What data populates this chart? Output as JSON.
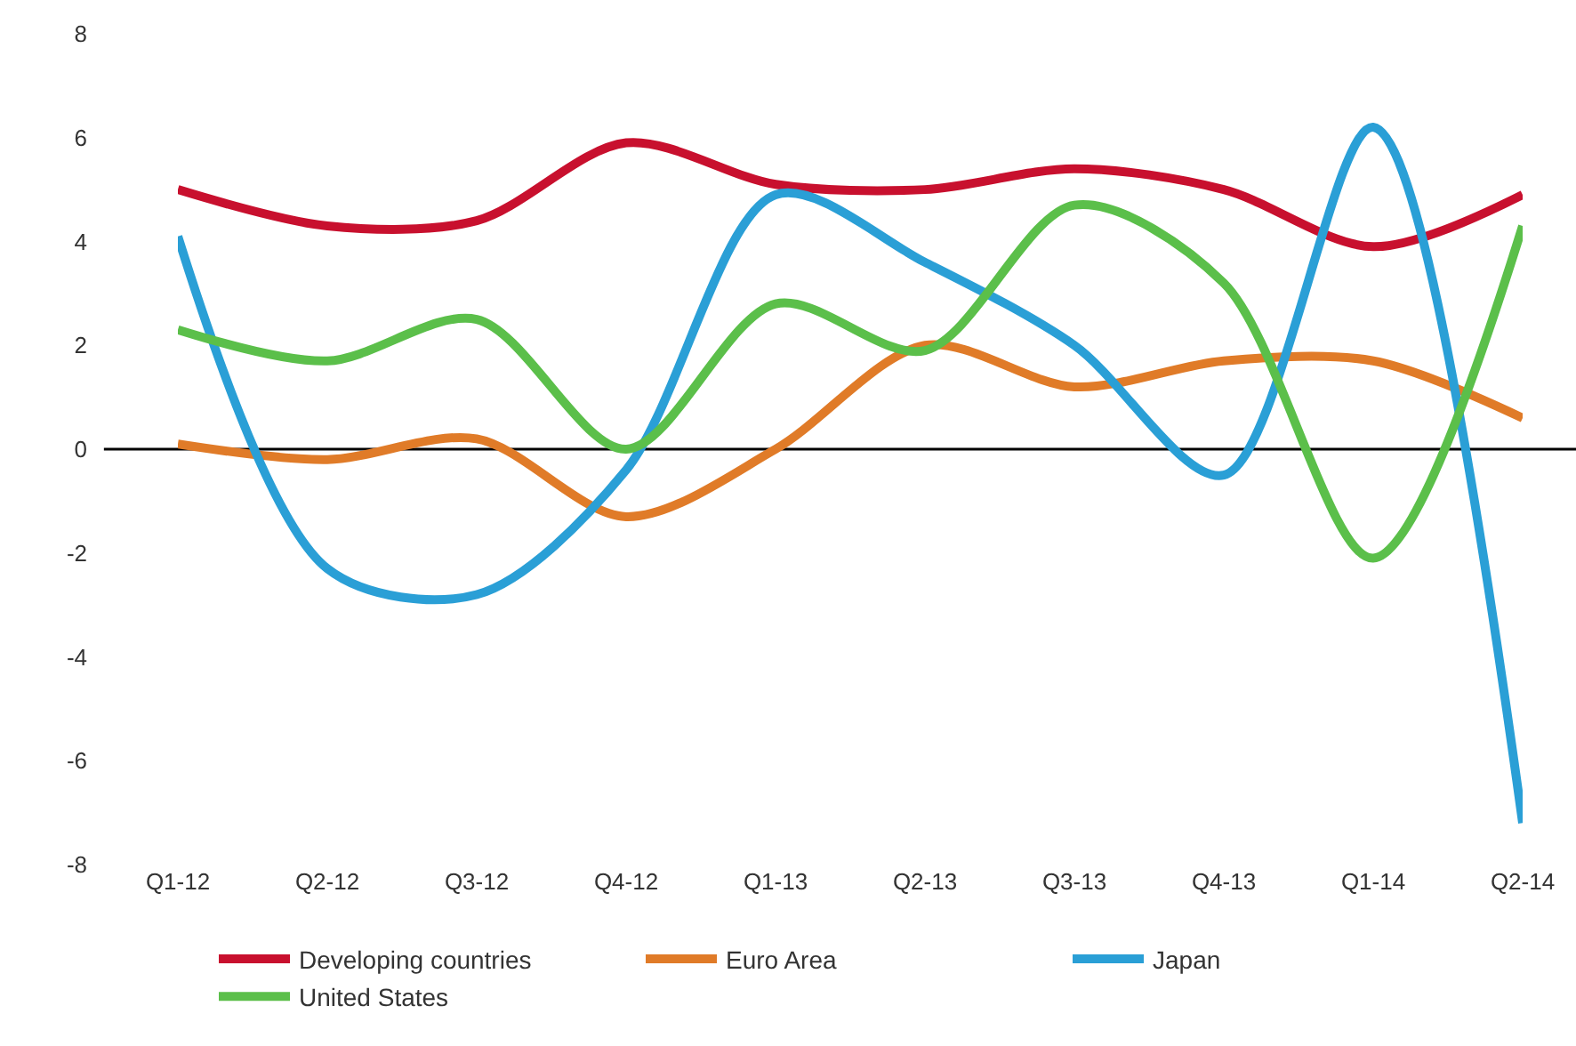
{
  "chart_data": {
    "type": "line",
    "categories": [
      "Q1-12",
      "Q2-12",
      "Q3-12",
      "Q4-12",
      "Q1-13",
      "Q2-13",
      "Q3-13",
      "Q4-13",
      "Q1-14",
      "Q2-14"
    ],
    "series": [
      {
        "name": "Developing countries",
        "color": "#c8102e",
        "values": [
          5.0,
          4.3,
          4.4,
          5.9,
          5.1,
          5.0,
          5.4,
          5.0,
          3.9,
          4.9
        ]
      },
      {
        "name": "Euro Area",
        "color": "#e07b28",
        "values": [
          0.1,
          -0.2,
          0.2,
          -1.3,
          0.0,
          2.0,
          1.2,
          1.7,
          1.7,
          0.6
        ]
      },
      {
        "name": "Japan",
        "color": "#2a9fd6",
        "values": [
          4.1,
          -2.3,
          -2.8,
          -0.4,
          4.9,
          3.6,
          2.0,
          -0.5,
          6.2,
          -7.2
        ]
      },
      {
        "name": "United States",
        "color": "#5bbf4a",
        "values": [
          2.3,
          1.7,
          2.5,
          0.0,
          2.8,
          1.9,
          4.7,
          3.2,
          -2.1,
          4.3
        ]
      }
    ],
    "ylim": [
      -8,
      8
    ],
    "yticks": [
      -8,
      -6,
      -4,
      -2,
      0,
      2,
      4,
      6,
      8
    ],
    "ref_lines": [
      {
        "axis": "y",
        "value": 0,
        "color": "#000000"
      }
    ],
    "grid": false,
    "legend": "bottom",
    "marker": "none",
    "line_style": "solid"
  }
}
